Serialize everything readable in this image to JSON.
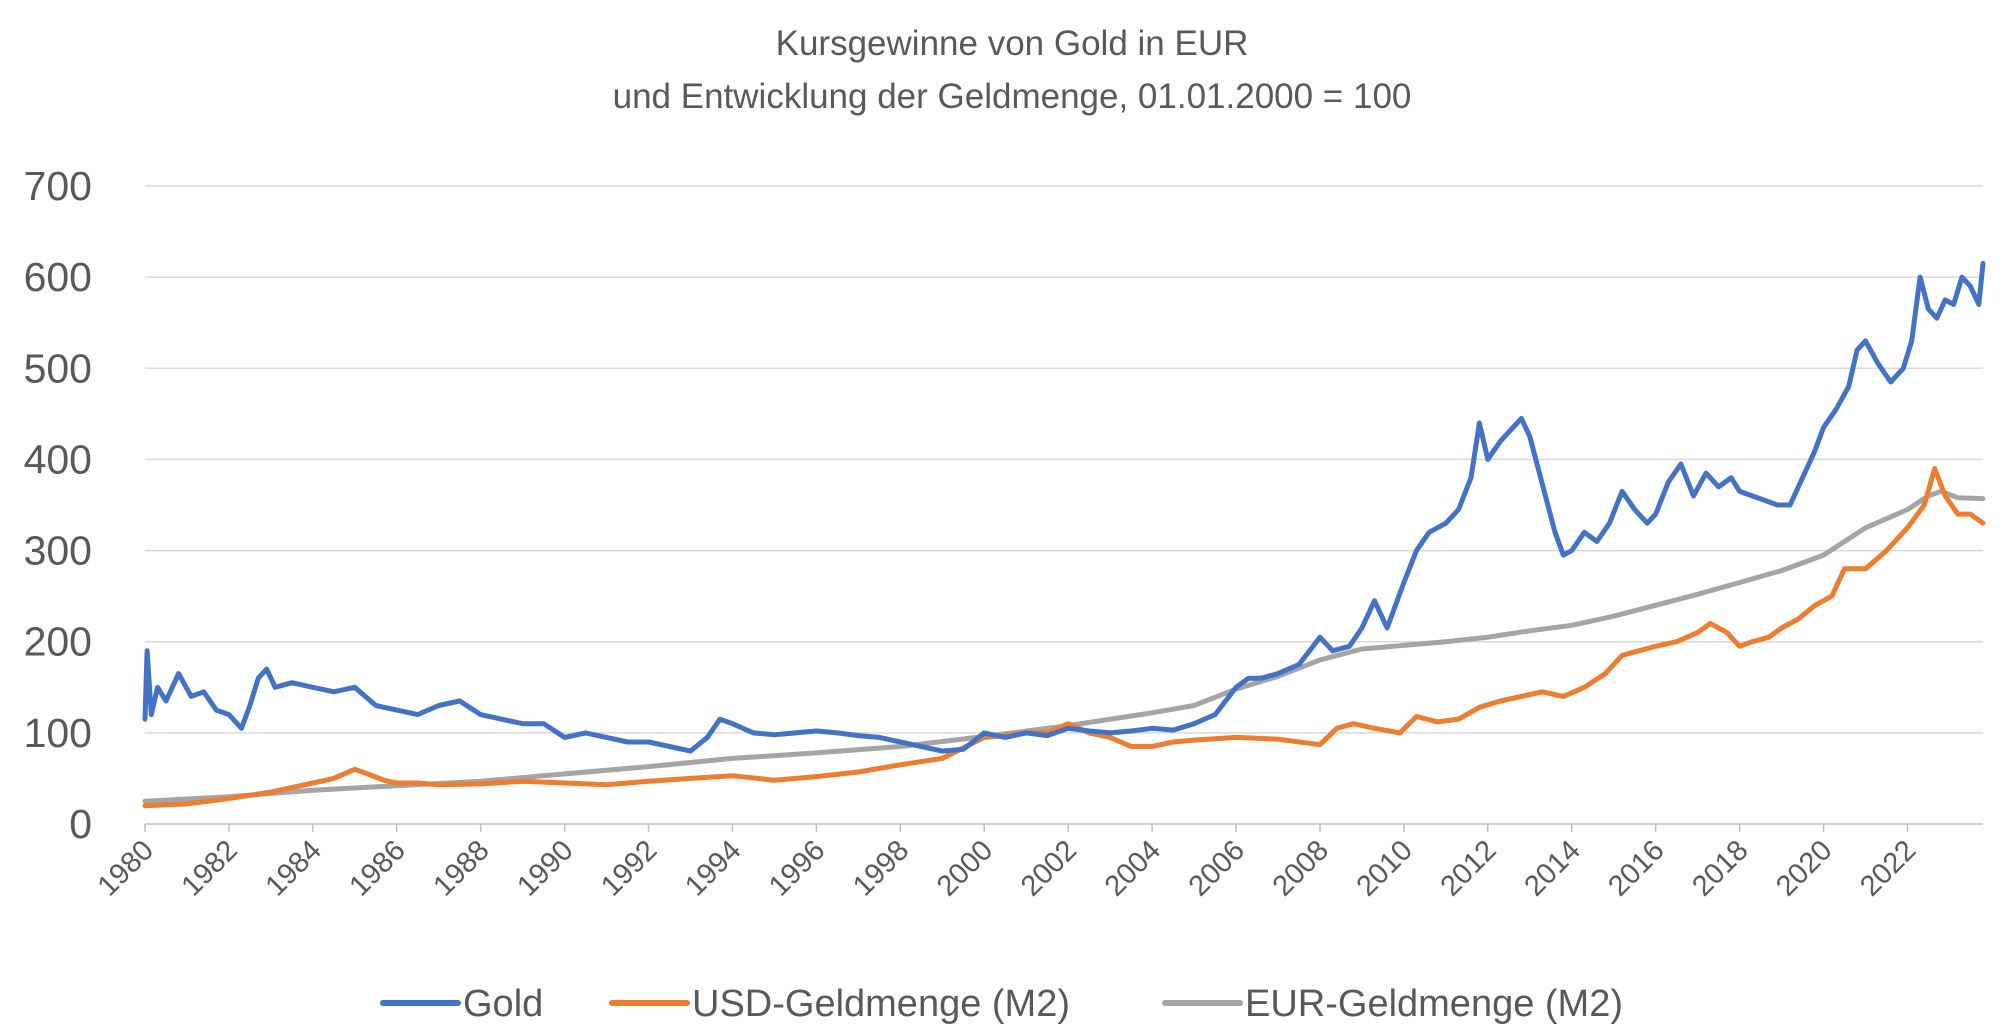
{
  "chart_data": {
    "type": "line",
    "title": "Kursgewinne von Gold in EUR",
    "subtitle": "und Entwicklung der Geldmenge, 01.01.2000 = 100",
    "xlabel": "",
    "ylabel": "",
    "xlim": [
      1980,
      2023.8
    ],
    "ylim": [
      0,
      700
    ],
    "y_ticks": [
      "0",
      "100",
      "200",
      "300",
      "400",
      "500",
      "600",
      "700"
    ],
    "x_ticks": [
      "1980",
      "1982",
      "1984",
      "1986",
      "1988",
      "1990",
      "1992",
      "1994",
      "1996",
      "1998",
      "2000",
      "2002",
      "2004",
      "2006",
      "2008",
      "2010",
      "2012",
      "2014",
      "2016",
      "2018",
      "2020",
      "2022"
    ],
    "grid": true,
    "legend": "bottom",
    "series": [
      {
        "name": "Gold",
        "color": "#4472c4",
        "x": [
          1980.0,
          1980.05,
          1980.15,
          1980.3,
          1980.5,
          1980.8,
          1981.1,
          1981.4,
          1981.7,
          1982.0,
          1982.3,
          1982.5,
          1982.7,
          1982.9,
          1983.1,
          1983.5,
          1984.0,
          1984.5,
          1985.0,
          1985.5,
          1986.0,
          1986.5,
          1987.0,
          1987.5,
          1988.0,
          1988.5,
          1989.0,
          1989.5,
          1990.0,
          1990.5,
          1991.0,
          1991.5,
          1992.0,
          1992.5,
          1993.0,
          1993.4,
          1993.7,
          1994.0,
          1994.5,
          1995.0,
          1995.5,
          1996.0,
          1996.5,
          1997.0,
          1997.5,
          1998.0,
          1998.5,
          1999.0,
          1999.5,
          2000.0,
          2000.5,
          2001.0,
          2001.5,
          2002.0,
          2002.5,
          2003.0,
          2003.5,
          2004.0,
          2004.5,
          2005.0,
          2005.5,
          2006.0,
          2006.3,
          2006.6,
          2007.0,
          2007.5,
          2008.0,
          2008.3,
          2008.7,
          2009.0,
          2009.3,
          2009.6,
          2010.0,
          2010.3,
          2010.6,
          2011.0,
          2011.3,
          2011.6,
          2011.8,
          2012.0,
          2012.3,
          2012.6,
          2012.8,
          2013.0,
          2013.2,
          2013.4,
          2013.6,
          2013.8,
          2014.0,
          2014.3,
          2014.6,
          2014.9,
          2015.2,
          2015.5,
          2015.8,
          2016.0,
          2016.3,
          2016.6,
          2016.9,
          2017.2,
          2017.5,
          2017.8,
          2018.0,
          2018.3,
          2018.6,
          2018.9,
          2019.2,
          2019.5,
          2019.8,
          2020.0,
          2020.3,
          2020.6,
          2020.8,
          2021.0,
          2021.3,
          2021.6,
          2021.9,
          2022.1,
          2022.3,
          2022.5,
          2022.7,
          2022.9,
          2023.1,
          2023.3,
          2023.5,
          2023.7,
          2023.8
        ],
        "values": [
          115,
          190,
          120,
          150,
          135,
          165,
          140,
          145,
          125,
          120,
          105,
          130,
          160,
          170,
          150,
          155,
          150,
          145,
          150,
          130,
          125,
          120,
          130,
          135,
          120,
          115,
          110,
          110,
          95,
          100,
          95,
          90,
          90,
          85,
          80,
          95,
          115,
          110,
          100,
          98,
          100,
          102,
          100,
          97,
          95,
          90,
          85,
          80,
          82,
          100,
          95,
          100,
          97,
          105,
          102,
          100,
          102,
          105,
          103,
          110,
          120,
          150,
          160,
          160,
          165,
          175,
          205,
          190,
          195,
          215,
          245,
          215,
          265,
          300,
          320,
          330,
          345,
          380,
          440,
          400,
          420,
          435,
          445,
          425,
          390,
          355,
          320,
          295,
          300,
          320,
          310,
          330,
          365,
          345,
          330,
          340,
          375,
          395,
          360,
          385,
          370,
          380,
          365,
          360,
          355,
          350,
          350,
          380,
          410,
          435,
          455,
          480,
          520,
          530,
          505,
          485,
          500,
          530,
          600,
          565,
          555,
          575,
          570,
          600,
          590,
          570,
          615
        ]
      },
      {
        "name": "USD-Geldmenge (M2)",
        "color": "#ed7d31",
        "x": [
          1980.0,
          1981.0,
          1982.0,
          1983.0,
          1984.0,
          1984.5,
          1985.0,
          1985.3,
          1985.7,
          1986.0,
          1986.5,
          1987.0,
          1988.0,
          1989.0,
          1990.0,
          1991.0,
          1992.0,
          1993.0,
          1994.0,
          1995.0,
          1996.0,
          1997.0,
          1998.0,
          1999.0,
          2000.0,
          2000.5,
          2001.0,
          2001.5,
          2002.0,
          2002.5,
          2003.0,
          2003.5,
          2004.0,
          2004.5,
          2005.0,
          2006.0,
          2007.0,
          2008.0,
          2008.4,
          2008.8,
          2009.3,
          2009.9,
          2010.3,
          2010.8,
          2011.3,
          2011.8,
          2012.3,
          2012.8,
          2013.3,
          2013.8,
          2014.3,
          2014.8,
          2015.2,
          2015.6,
          2016.0,
          2016.5,
          2017.0,
          2017.3,
          2017.7,
          2018.0,
          2018.3,
          2018.7,
          2019.0,
          2019.4,
          2019.8,
          2020.2,
          2020.5,
          2021.0,
          2021.5,
          2022.0,
          2022.4,
          2022.65,
          2022.9,
          2023.2,
          2023.5,
          2023.8
        ],
        "values": [
          20,
          22,
          28,
          35,
          45,
          50,
          60,
          55,
          48,
          45,
          45,
          43,
          44,
          47,
          45,
          43,
          47,
          50,
          53,
          48,
          52,
          57,
          65,
          72,
          95,
          97,
          100,
          100,
          110,
          100,
          95,
          85,
          85,
          90,
          92,
          95,
          93,
          87,
          105,
          110,
          105,
          100,
          118,
          112,
          115,
          128,
          135,
          140,
          145,
          140,
          150,
          165,
          185,
          190,
          195,
          200,
          210,
          220,
          210,
          195,
          200,
          205,
          215,
          225,
          240,
          250,
          280,
          280,
          300,
          325,
          350,
          390,
          360,
          340,
          340,
          330
        ]
      },
      {
        "name": "EUR-Geldmenge (M2)",
        "color": "#a5a5a5",
        "x": [
          1980.0,
          1982.0,
          1984.0,
          1986.0,
          1988.0,
          1990.0,
          1992.0,
          1994.0,
          1996.0,
          1998.0,
          2000.0,
          2002.0,
          2004.0,
          2005.0,
          2006.0,
          2007.0,
          2008.0,
          2009.0,
          2010.0,
          2011.0,
          2012.0,
          2013.0,
          2014.0,
          2015.0,
          2016.0,
          2017.0,
          2018.0,
          2019.0,
          2020.0,
          2020.5,
          2021.0,
          2022.0,
          2022.5,
          2022.8,
          2023.2,
          2023.8
        ],
        "values": [
          25,
          30,
          37,
          42,
          47,
          55,
          63,
          72,
          78,
          85,
          96,
          108,
          122,
          130,
          148,
          162,
          180,
          192,
          196,
          200,
          205,
          212,
          218,
          228,
          240,
          252,
          265,
          278,
          295,
          310,
          325,
          345,
          360,
          365,
          358,
          357
        ]
      }
    ]
  }
}
